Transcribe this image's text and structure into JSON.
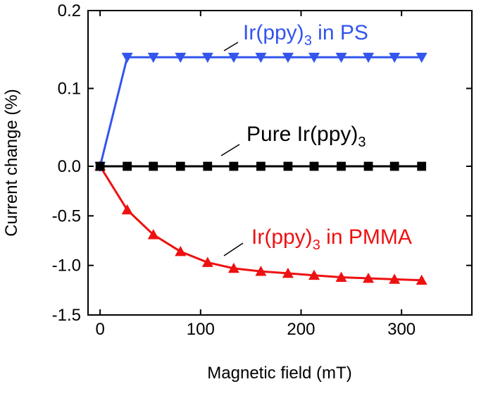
{
  "chart_data": {
    "type": "line",
    "x_label": "Magnetic field (mT)",
    "y_label": "Current change (%)",
    "x": [
      0,
      27,
      53,
      80,
      107,
      133,
      160,
      187,
      213,
      240,
      267,
      293,
      320
    ],
    "xlim": [
      -12,
      370
    ],
    "xticks": [
      0,
      100,
      200,
      300
    ],
    "ylim": [
      -1.5,
      0.2
    ],
    "yticks": [
      {
        "value": 0.2,
        "label": "0.2"
      },
      {
        "value": 0.1,
        "label": "0.1"
      },
      {
        "value": 0,
        "label": "0.0"
      },
      {
        "value": -0.5,
        "label": "-0.5"
      },
      {
        "value": -1,
        "label": "-1.0"
      },
      {
        "value": -1.5,
        "label": "-1.5"
      }
    ],
    "y_scale": "split at zero",
    "series": [
      {
        "name": "Ir(ppy)3 in PS",
        "label": {
          "text": "Ir(ppy)",
          "sub": "3",
          "rest": " in PS"
        },
        "color": "#3355ee",
        "marker": "triangle-down",
        "values": [
          0,
          0.14,
          0.14,
          0.14,
          0.14,
          0.14,
          0.14,
          0.14,
          0.14,
          0.14,
          0.14,
          0.14,
          0.14
        ]
      },
      {
        "name": "Ir(ppy)3 in PMMA",
        "label": {
          "text": "Ir(ppy)",
          "sub": "3",
          "rest": " in PMMA"
        },
        "color": "#ee1111",
        "marker": "triangle-up",
        "values": [
          0,
          -0.44,
          -0.69,
          -0.86,
          -0.97,
          -1.03,
          -1.06,
          -1.08,
          -1.1,
          -1.12,
          -1.13,
          -1.14,
          -1.15
        ]
      },
      {
        "name": "Pure Ir(ppy)3",
        "label": {
          "text": "Pure Ir(ppy)",
          "sub": "3",
          "rest": ""
        },
        "color": "#000000",
        "marker": "square",
        "values": [
          0,
          0,
          0,
          0,
          0,
          0,
          0,
          0,
          0,
          0,
          0,
          0,
          0
        ]
      }
    ]
  }
}
